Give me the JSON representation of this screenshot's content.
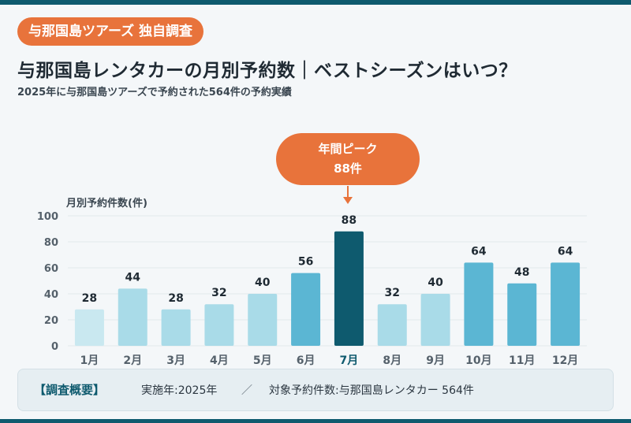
{
  "badge": "与那国島ツアーズ 独自調査",
  "title": "与那国島レンタカーの月別予約数｜ベストシーズンはいつ？",
  "subtitle": "2025年に与那国島ツアーズで予約された564件の予約実績",
  "peak": {
    "line1": "年間ピーク",
    "line2": "88件"
  },
  "note": {
    "label": "【調査概要】",
    "item1": "実施年:2025年",
    "separator": "／",
    "item2": "対象予約件数:与那国島レンタカー 564件"
  },
  "colors": {
    "brand": "#0e5a6e",
    "accent": "#e8733b",
    "bar_low": "#c9e8f0",
    "bar_mid": "#a9dbe8",
    "bar_high": "#5bb6d3",
    "bar_peak": "#0e5a6e"
  },
  "chart_data": {
    "type": "bar",
    "ylabel": "月別予約件数(件)",
    "ylim": [
      0,
      100
    ],
    "yticks": [
      0,
      20,
      40,
      60,
      80,
      100
    ],
    "grid": true,
    "categories": [
      "1月",
      "2月",
      "3月",
      "4月",
      "5月",
      "6月",
      "7月",
      "8月",
      "9月",
      "10月",
      "11月",
      "12月"
    ],
    "values": [
      28,
      44,
      28,
      32,
      40,
      56,
      88,
      32,
      40,
      64,
      48,
      64
    ],
    "data_labels": [
      "28",
      "44",
      "28",
      "32",
      "40",
      "56",
      "88",
      "32",
      "40",
      "64",
      "48",
      "64"
    ],
    "bar_tiers": [
      "low",
      "mid",
      "mid",
      "mid",
      "mid",
      "high",
      "peak",
      "mid",
      "mid",
      "high",
      "high",
      "high"
    ]
  }
}
